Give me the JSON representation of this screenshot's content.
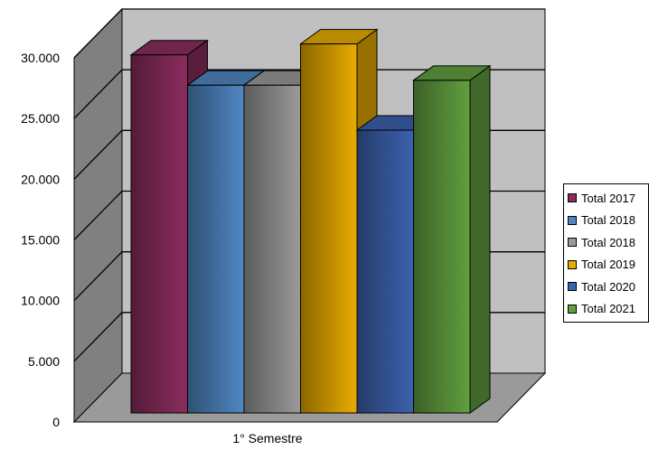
{
  "chart_data": {
    "type": "bar",
    "style": "3d-clustered-column",
    "categories": [
      "1° Semestre"
    ],
    "series": [
      {
        "name": "Total 2017",
        "values": [
          29500
        ],
        "color": "#8b2d5e"
      },
      {
        "name": "Total 2018",
        "values": [
          27000
        ],
        "color": "#4f87c2"
      },
      {
        "name": "Total 2018",
        "values": [
          27000
        ],
        "color": "#9a9a9a"
      },
      {
        "name": "Total 2019",
        "values": [
          30400
        ],
        "color": "#e8ac00"
      },
      {
        "name": "Total 2020",
        "values": [
          23300
        ],
        "color": "#3c62ae"
      },
      {
        "name": "Total 2021",
        "values": [
          27400
        ],
        "color": "#62a040"
      }
    ],
    "y_ticks": [
      "0",
      "5.000",
      "10.000",
      "15.000",
      "20.000",
      "25.000",
      "30.000"
    ],
    "ylim": [
      0,
      30000
    ],
    "grid": true,
    "legend_position": "right",
    "title": "",
    "xlabel": "",
    "ylabel": ""
  },
  "colors": {
    "back_wall": "#c0c0c0",
    "side_wall": "#808080",
    "floor": "#9a9a9a",
    "gridline": "#000000"
  }
}
